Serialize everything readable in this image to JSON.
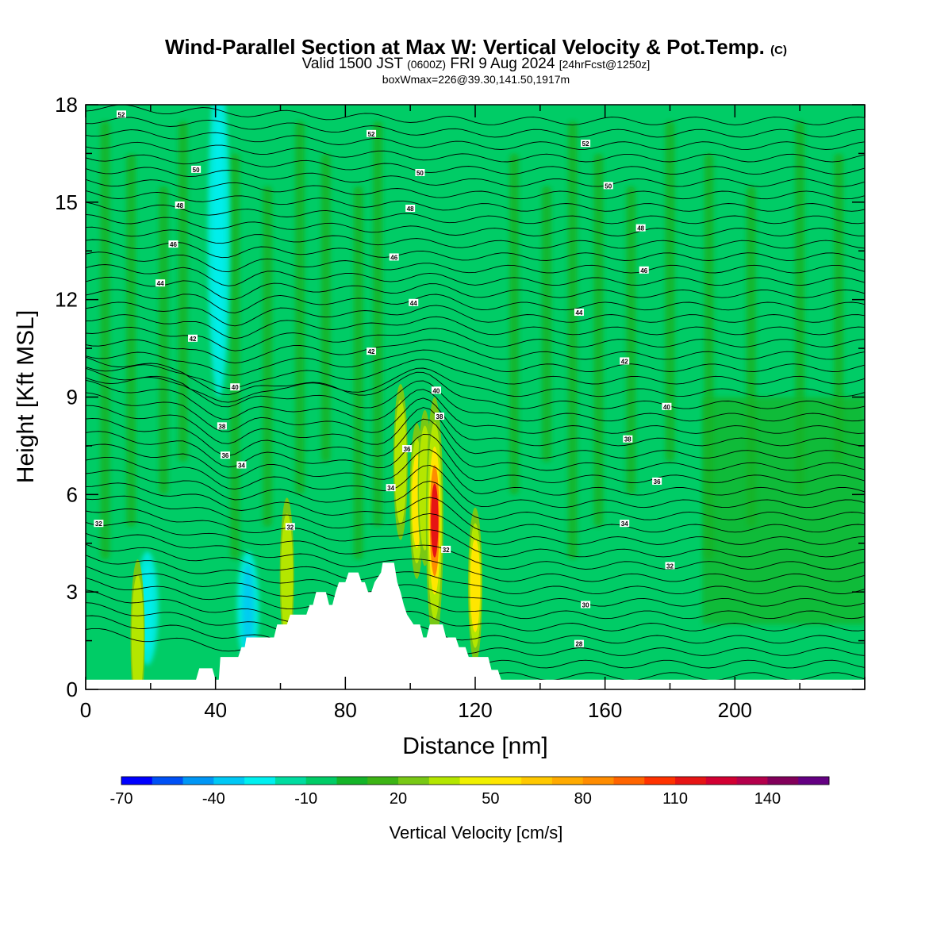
{
  "header": {
    "title_main": "Wind-Parallel Section at Max W: Vertical Velocity & Pot.Temp.",
    "title_mark": "(C)",
    "valid_prefix": "Valid 1500 JST",
    "valid_utc": "(0600Z)",
    "valid_date": "FRI 9 Aug 2024",
    "forecast": "[24hrFcst@1250z]",
    "box_info": "boxWmax=226@39.30,141.50,1917m"
  },
  "chart_data": {
    "type": "heatmap",
    "xlabel": "Distance [nm]",
    "ylabel": "Height [Kft MSL]",
    "xlim": [
      0,
      240
    ],
    "ylim": [
      0,
      18
    ],
    "x_ticks": [
      0,
      40,
      80,
      120,
      160,
      200
    ],
    "y_ticks": [
      0,
      3,
      6,
      9,
      12,
      15,
      18
    ],
    "x_tick_labels": [
      "0",
      "40",
      "80",
      "120",
      "160",
      "200"
    ],
    "y_tick_labels": [
      "0",
      "3",
      "6",
      "9",
      "12",
      "15",
      "18"
    ],
    "colorbar": {
      "title": "Vertical Velocity [cm/s]",
      "levels": [
        -70,
        -60,
        -50,
        -40,
        -30,
        -20,
        -10,
        0,
        10,
        20,
        30,
        40,
        50,
        60,
        70,
        80,
        90,
        100,
        110,
        120,
        130,
        140,
        150
      ],
      "tick_labels": [
        "-70",
        "-40",
        "-10",
        "20",
        "50",
        "80",
        "110",
        "140"
      ],
      "tick_values": [
        -70,
        -40,
        -10,
        20,
        50,
        80,
        110,
        140
      ],
      "colors": [
        "#0000ff",
        "#0050f5",
        "#0096f5",
        "#00c8f5",
        "#00f0f0",
        "#00dca0",
        "#00cc66",
        "#14b428",
        "#3cb414",
        "#78c814",
        "#b4e600",
        "#f0f000",
        "#ffe600",
        "#ffc800",
        "#ffaa00",
        "#ff8c00",
        "#ff6400",
        "#ff3200",
        "#e61414",
        "#d20032",
        "#b4004b",
        "#82005a",
        "#640082"
      ]
    },
    "background_color": "#00cc66",
    "terrain_kft": [
      [
        0,
        0.3
      ],
      [
        4,
        0.3
      ],
      [
        8,
        0.3
      ],
      [
        12,
        0.3
      ],
      [
        16,
        0.3
      ],
      [
        20,
        0.3
      ],
      [
        24,
        0.3
      ],
      [
        28,
        0.3
      ],
      [
        34,
        0.3
      ],
      [
        35,
        0.65
      ],
      [
        39,
        0.65
      ],
      [
        40,
        0.3
      ],
      [
        41,
        0.3
      ],
      [
        41.5,
        1.0
      ],
      [
        47,
        1.0
      ],
      [
        48,
        1.3
      ],
      [
        49,
        1.3
      ],
      [
        49.5,
        1.6
      ],
      [
        58,
        1.6
      ],
      [
        59,
        2.0
      ],
      [
        62,
        2.0
      ],
      [
        63,
        2.3
      ],
      [
        68,
        2.3
      ],
      [
        69,
        2.6
      ],
      [
        70,
        2.6
      ],
      [
        71,
        3.0
      ],
      [
        74,
        3.0
      ],
      [
        75,
        2.6
      ],
      [
        76,
        2.6
      ],
      [
        77,
        3.0
      ],
      [
        78,
        3.3
      ],
      [
        80,
        3.3
      ],
      [
        81,
        3.6
      ],
      [
        84,
        3.6
      ],
      [
        85,
        3.3
      ],
      [
        86,
        3.3
      ],
      [
        87,
        3.0
      ],
      [
        88,
        3.0
      ],
      [
        89,
        3.3
      ],
      [
        91,
        3.6
      ],
      [
        91.5,
        3.9
      ],
      [
        95,
        3.9
      ],
      [
        96,
        3.3
      ],
      [
        97,
        3.0
      ],
      [
        98,
        2.6
      ],
      [
        99,
        2.3
      ],
      [
        101,
        2.0
      ],
      [
        103,
        2.0
      ],
      [
        104,
        1.6
      ],
      [
        105,
        1.6
      ],
      [
        106,
        2.0
      ],
      [
        110,
        2.0
      ],
      [
        111,
        1.6
      ],
      [
        114,
        1.6
      ],
      [
        115,
        1.3
      ],
      [
        117,
        1.3
      ],
      [
        118,
        1.0
      ],
      [
        124,
        1.0
      ],
      [
        125,
        0.6
      ],
      [
        127,
        0.6
      ],
      [
        128,
        0.3
      ],
      [
        240,
        0.3
      ]
    ],
    "theta_contours": [
      {
        "label": "28",
        "x": 152,
        "y": 1.4
      },
      {
        "label": "30",
        "x": 154,
        "y": 2.6
      },
      {
        "label": "32",
        "x": 4,
        "y": 5.1
      },
      {
        "label": "32",
        "x": 111,
        "y": 4.3
      },
      {
        "label": "32",
        "x": 180,
        "y": 3.8
      },
      {
        "label": "32",
        "x": 63,
        "y": 5.0
      },
      {
        "label": "34",
        "x": 48,
        "y": 6.9
      },
      {
        "label": "34",
        "x": 94,
        "y": 6.2
      },
      {
        "label": "34",
        "x": 166,
        "y": 5.1
      },
      {
        "label": "36",
        "x": 43,
        "y": 7.2
      },
      {
        "label": "36",
        "x": 99,
        "y": 7.4
      },
      {
        "label": "36",
        "x": 176,
        "y": 6.4
      },
      {
        "label": "38",
        "x": 42,
        "y": 8.1
      },
      {
        "label": "38",
        "x": 109,
        "y": 8.4
      },
      {
        "label": "38",
        "x": 167,
        "y": 7.7
      },
      {
        "label": "40",
        "x": 46,
        "y": 9.3
      },
      {
        "label": "40",
        "x": 108,
        "y": 9.2
      },
      {
        "label": "40",
        "x": 179,
        "y": 8.7
      },
      {
        "label": "42",
        "x": 33,
        "y": 10.8
      },
      {
        "label": "42",
        "x": 88,
        "y": 10.4
      },
      {
        "label": "42",
        "x": 166,
        "y": 10.1
      },
      {
        "label": "44",
        "x": 23,
        "y": 12.5
      },
      {
        "label": "44",
        "x": 101,
        "y": 11.9
      },
      {
        "label": "44",
        "x": 152,
        "y": 11.6
      },
      {
        "label": "46",
        "x": 27,
        "y": 13.7
      },
      {
        "label": "46",
        "x": 95,
        "y": 13.3
      },
      {
        "label": "46",
        "x": 172,
        "y": 12.9
      },
      {
        "label": "48",
        "x": 29,
        "y": 14.9
      },
      {
        "label": "48",
        "x": 100,
        "y": 14.8
      },
      {
        "label": "48",
        "x": 171,
        "y": 14.2
      },
      {
        "label": "50",
        "x": 34,
        "y": 16.0
      },
      {
        "label": "50",
        "x": 103,
        "y": 15.9
      },
      {
        "label": "50",
        "x": 161,
        "y": 15.5
      },
      {
        "label": "52",
        "x": 11,
        "y": 17.7
      },
      {
        "label": "52",
        "x": 88,
        "y": 17.1
      },
      {
        "label": "52",
        "x": 154,
        "y": 16.8
      }
    ],
    "updrafts": [
      {
        "x": 97,
        "y": 7.0,
        "w_cm_s": 45
      },
      {
        "x": 102,
        "y": 5.8,
        "w_cm_s": 55
      },
      {
        "x": 104.5,
        "y": 6.2,
        "w_cm_s": 45
      },
      {
        "x": 107.5,
        "y": 5.2,
        "w_cm_s": 115
      },
      {
        "x": 120,
        "y": 3.2,
        "w_cm_s": 50
      },
      {
        "x": 16,
        "y": 1.6,
        "w_cm_s": 45
      },
      {
        "x": 62,
        "y": 3.5,
        "w_cm_s": 35
      }
    ],
    "downdrafts": [
      {
        "x": 41,
        "y": 14.0,
        "w_cm_s": -30
      },
      {
        "x": 19,
        "y": 2.5,
        "w_cm_s": -30
      },
      {
        "x": 50,
        "y": 2.5,
        "w_cm_s": -40
      }
    ]
  }
}
